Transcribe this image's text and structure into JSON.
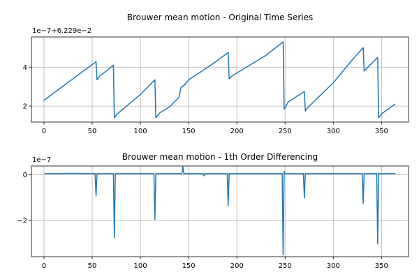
{
  "chart_data": [
    {
      "type": "line",
      "title": "Brouwer mean motion - Original Time Series",
      "offset_label": "1e−7+6.229e−2",
      "xlim": [
        -13,
        378
      ],
      "ylim": [
        1.18,
        5.55
      ],
      "ylim_units": "1e-7 above 6.229e-2",
      "xticks": [
        0,
        50,
        100,
        150,
        200,
        250,
        300,
        350
      ],
      "yticks": [
        2,
        4
      ],
      "grid": true,
      "color": "#1f77b4",
      "series": [
        {
          "x": [
            0,
            54,
            55,
            58,
            66,
            72,
            73,
            76,
            100,
            115,
            116,
            120,
            130,
            140,
            142,
            146,
            150,
            170,
            180,
            191,
            192,
            195,
            210,
            230,
            248,
            249,
            250,
            253,
            270,
            271,
            274,
            300,
            320,
            331,
            332,
            334,
            346,
            347,
            350,
            364
          ],
          "y": [
            2.3,
            4.28,
            3.35,
            3.55,
            3.85,
            4.1,
            1.4,
            1.6,
            2.6,
            3.35,
            1.4,
            1.65,
            1.95,
            2.45,
            2.95,
            3.1,
            3.35,
            4.0,
            4.35,
            4.75,
            3.4,
            3.55,
            4.0,
            4.6,
            5.3,
            1.85,
            1.9,
            2.2,
            2.75,
            1.75,
            1.95,
            3.2,
            4.4,
            5.0,
            3.8,
            3.9,
            4.5,
            1.4,
            1.6,
            2.1
          ]
        }
      ]
    },
    {
      "type": "line",
      "title": "Brouwer mean motion - 1th Order Differencing",
      "offset_label": "1e−7",
      "xlim": [
        -13,
        378
      ],
      "ylim": [
        -3.58,
        0.38
      ],
      "ylim_units": "1e-7",
      "xticks": [
        0,
        50,
        100,
        150,
        200,
        250,
        300,
        350
      ],
      "yticks": [
        -2,
        0
      ],
      "grid": true,
      "color": "#1f77b4",
      "series": [
        {
          "x": [
            1,
            30,
            53,
            54,
            55,
            72,
            73,
            74,
            114,
            115,
            116,
            143,
            144,
            145,
            165,
            166,
            167,
            190,
            191,
            192,
            247,
            248,
            249,
            250,
            251,
            269,
            270,
            271,
            330,
            331,
            332,
            345,
            346,
            347,
            364
          ],
          "y": [
            0.05,
            0.06,
            0.05,
            -0.93,
            0.05,
            0.05,
            -2.75,
            0.05,
            0.05,
            -1.95,
            0.05,
            0.05,
            0.35,
            0.05,
            0.05,
            -0.05,
            0.05,
            0.05,
            -1.35,
            0.05,
            0.05,
            -3.5,
            0.15,
            0.05,
            0.05,
            0.05,
            -1.02,
            0.05,
            0.05,
            -1.25,
            0.05,
            0.05,
            -3.02,
            0.05,
            0.05
          ]
        }
      ]
    }
  ]
}
